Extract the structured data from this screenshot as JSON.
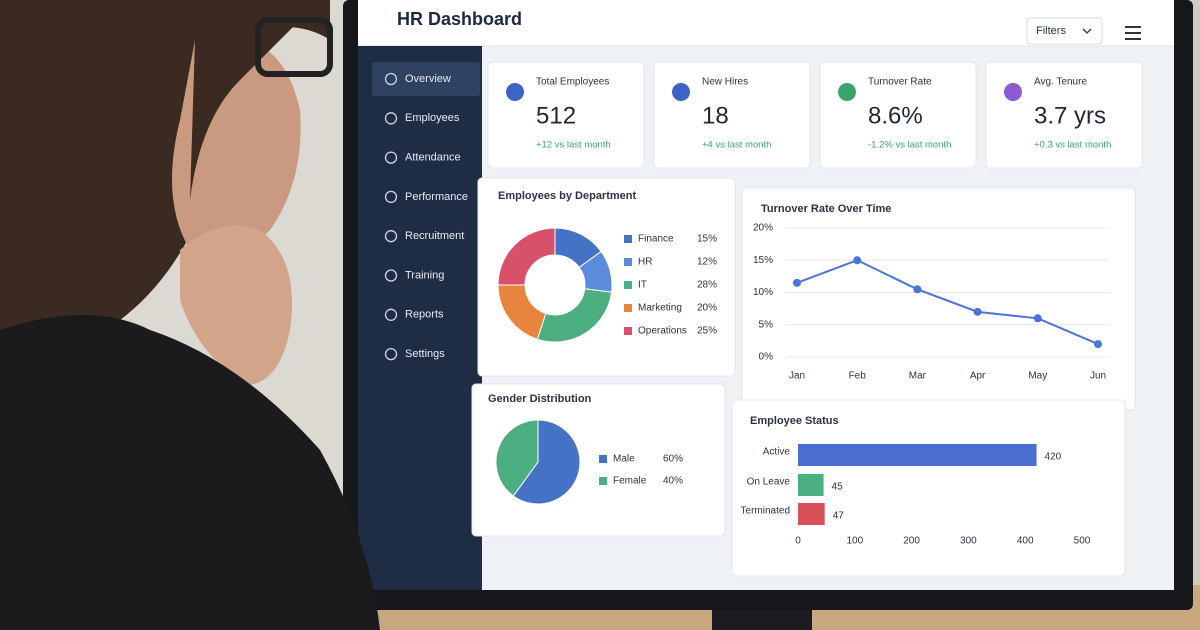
{
  "header": {
    "title": "HR Dashboard",
    "filter": "Filters"
  },
  "sidebar": {
    "items": [
      "Overview",
      "Employees",
      "Attendance",
      "Performance",
      "Recruitment",
      "Training",
      "Reports",
      "Settings"
    ]
  },
  "kpis": [
    {
      "label": "Total Employees",
      "value": "512",
      "delta": "+12 vs last month"
    },
    {
      "label": "New Hires",
      "value": "18",
      "delta": "+4 vs last month"
    },
    {
      "label": "Turnover Rate",
      "value": "8.6%",
      "delta": "-1.2% vs last month"
    },
    {
      "label": "Avg. Tenure",
      "value": "3.7 yrs",
      "delta": "+0.3 vs last month"
    }
  ],
  "chart_data": [
    {
      "type": "donut",
      "title": "Employees by Department",
      "categories": [
        "Finance",
        "HR",
        "IT",
        "Marketing",
        "Operations"
      ],
      "values": [
        15,
        12,
        28,
        20,
        25
      ],
      "value_labels": [
        "15%",
        "12%",
        "28%",
        "20%",
        "25%"
      ],
      "colors": [
        "#4472c4",
        "#5b8bd9",
        "#4caf82",
        "#e8843c",
        "#d9506a"
      ]
    },
    {
      "type": "line",
      "title": "Turnover Rate Over Time",
      "categories": [
        "Jan",
        "Feb",
        "Mar",
        "Apr",
        "May",
        "Jun"
      ],
      "values": [
        11.5,
        15,
        10.5,
        7,
        6,
        2
      ],
      "color": "#4a74d6",
      "ylim": [
        0,
        20
      ],
      "yticks": [
        {
          "value": 0,
          "label": "0%"
        },
        {
          "value": 5,
          "label": "5%"
        },
        {
          "value": 10,
          "label": "10%"
        },
        {
          "value": 15,
          "label": "15%"
        },
        {
          "value": 20,
          "label": "20%"
        }
      ],
      "grid": true
    },
    {
      "type": "pie",
      "title": "Gender Distribution",
      "categories": [
        "Male",
        "Female"
      ],
      "values": [
        60,
        40
      ],
      "value_labels": [
        "60%",
        "40%"
      ],
      "colors": [
        "#4472c4",
        "#4caf82"
      ]
    },
    {
      "type": "hbar",
      "title": "Employee Status",
      "categories": [
        "Active",
        "On Leave",
        "Terminated"
      ],
      "values": [
        420,
        45,
        47
      ],
      "colors": [
        "#4a6fd0",
        "#4caf82",
        "#d9505a"
      ],
      "xlim": [
        0,
        500
      ],
      "xticks": [
        0,
        100,
        200,
        300,
        400,
        500
      ]
    }
  ]
}
